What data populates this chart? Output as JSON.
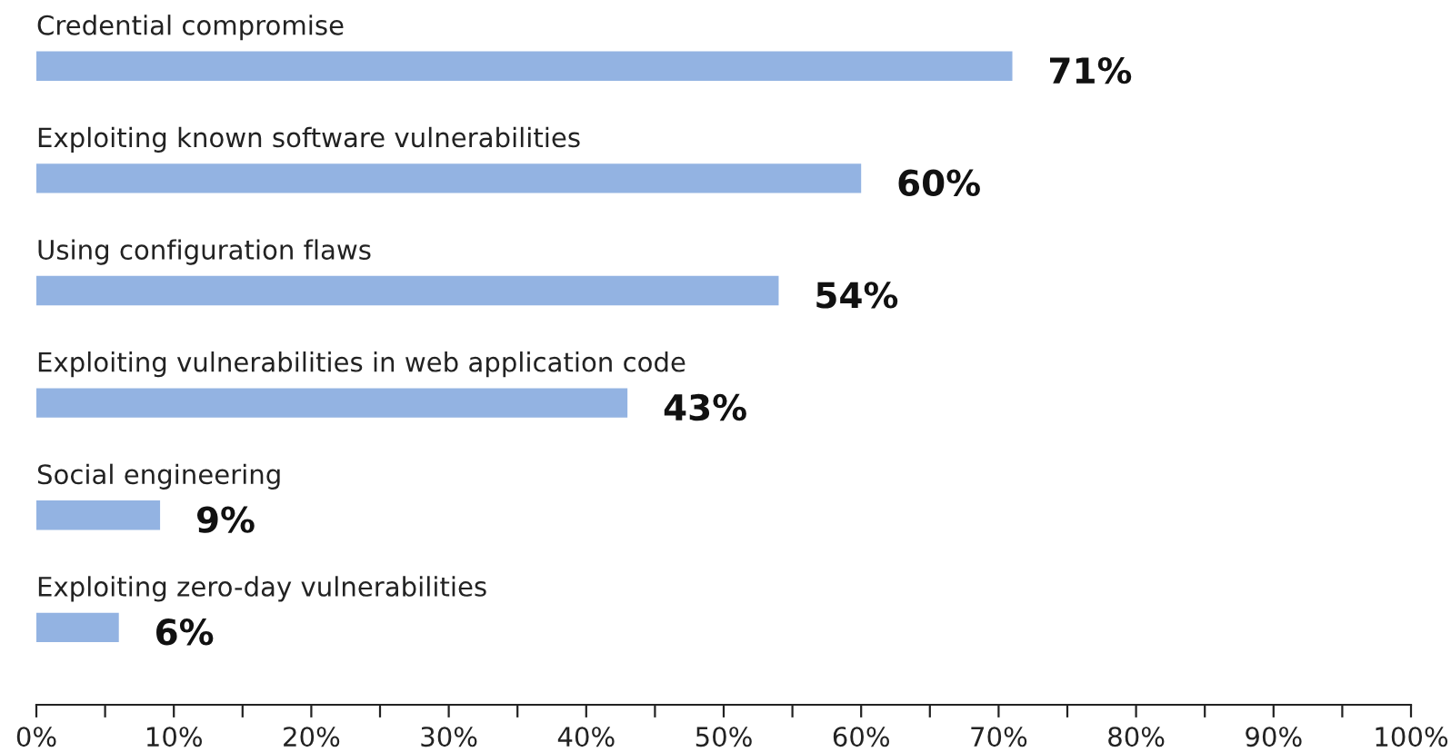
{
  "chart_data": {
    "type": "bar",
    "orientation": "horizontal",
    "categories": [
      "Credential compromise",
      "Exploiting known software vulnerabilities",
      "Using configuration flaws",
      "Exploiting vulnerabilities in web application code",
      "Social engineering",
      "Exploiting zero-day vulnerabilities"
    ],
    "values": [
      71,
      60,
      54,
      43,
      9,
      6
    ],
    "value_labels": [
      "71%",
      "60%",
      "54%",
      "43%",
      "9%",
      "6%"
    ],
    "color": "#93b3e2",
    "xlim": [
      0,
      100
    ],
    "xticks": [
      {
        "value": 0,
        "label": "0%"
      },
      {
        "value": 5,
        "label": null
      },
      {
        "value": 10,
        "label": "10%"
      },
      {
        "value": 15,
        "label": null
      },
      {
        "value": 20,
        "label": "20%"
      },
      {
        "value": 25,
        "label": null
      },
      {
        "value": 30,
        "label": "30%"
      },
      {
        "value": 35,
        "label": null
      },
      {
        "value": 40,
        "label": "40%"
      },
      {
        "value": 45,
        "label": null
      },
      {
        "value": 50,
        "label": "50%"
      },
      {
        "value": 55,
        "label": null
      },
      {
        "value": 60,
        "label": "60%"
      },
      {
        "value": 65,
        "label": null
      },
      {
        "value": 70,
        "label": "70%"
      },
      {
        "value": 75,
        "label": null
      },
      {
        "value": 80,
        "label": "80%"
      },
      {
        "value": 85,
        "label": null
      },
      {
        "value": 90,
        "label": "90%"
      },
      {
        "value": 95,
        "label": null
      },
      {
        "value": 100,
        "label": "100%"
      }
    ],
    "grid": false,
    "legend": false
  }
}
